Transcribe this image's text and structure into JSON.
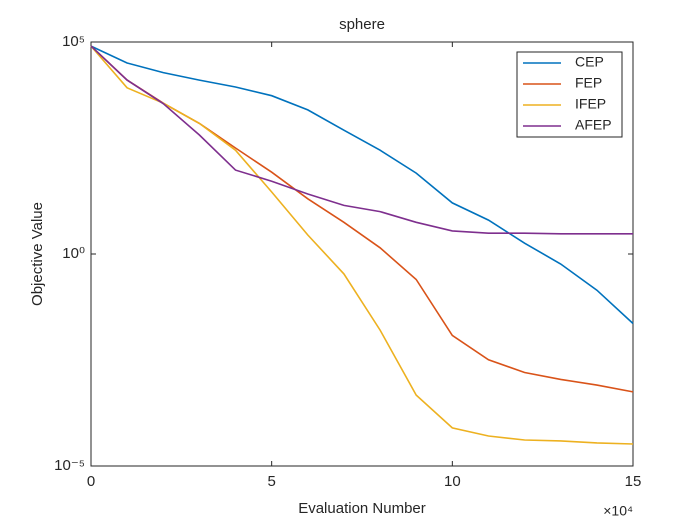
{
  "chart_data": {
    "type": "line",
    "title": "sphere",
    "x_label": "Evaluation Number",
    "y_label": "Objective Value",
    "x_multiplier": "×10⁴",
    "x": [
      0,
      1,
      2,
      3,
      4,
      5,
      6,
      7,
      8,
      9,
      10,
      11,
      12,
      13,
      14,
      15
    ],
    "series": [
      {
        "name": "CEP",
        "color": "#0072BD",
        "values": [
          80000,
          32000,
          19000,
          12600,
          8700,
          5400,
          2500,
          830,
          280,
          81,
          16,
          6.3,
          1.8,
          0.58,
          0.14,
          0.023
        ]
      },
      {
        "name": "FEP",
        "color": "#D95319",
        "values": [
          80000,
          12600,
          3600,
          1200,
          316,
          85,
          20,
          5.6,
          1.4,
          0.25,
          0.012,
          0.0032,
          0.0016,
          0.0011,
          0.00081,
          0.00056
        ]
      },
      {
        "name": "IFEP",
        "color": "#EDB120",
        "values": [
          80000,
          8300,
          3600,
          1200,
          280,
          29,
          2.8,
          0.34,
          0.016,
          0.00047,
          7.9e-05,
          5.1e-05,
          4.1e-05,
          3.9e-05,
          3.5e-05,
          3.3e-05
        ]
      },
      {
        "name": "AFEP",
        "color": "#7E2F8E",
        "values": [
          80000,
          12600,
          3500,
          640,
          95,
          52,
          26,
          14,
          10,
          5.6,
          3.5,
          3.1,
          3.1,
          3.0,
          3.0,
          3.0
        ]
      }
    ],
    "xlim": [
      0,
      15
    ],
    "xticks": [
      0,
      5,
      10,
      15
    ],
    "ylim": [
      1e-05,
      100000
    ],
    "y_scale": "log",
    "yticks": [
      {
        "value": 1e-05,
        "label": "10⁻⁵"
      },
      {
        "value": 1,
        "label": "10⁰"
      },
      {
        "value": 100000,
        "label": "10⁵"
      }
    ],
    "legend": "northeast",
    "grid": false
  }
}
